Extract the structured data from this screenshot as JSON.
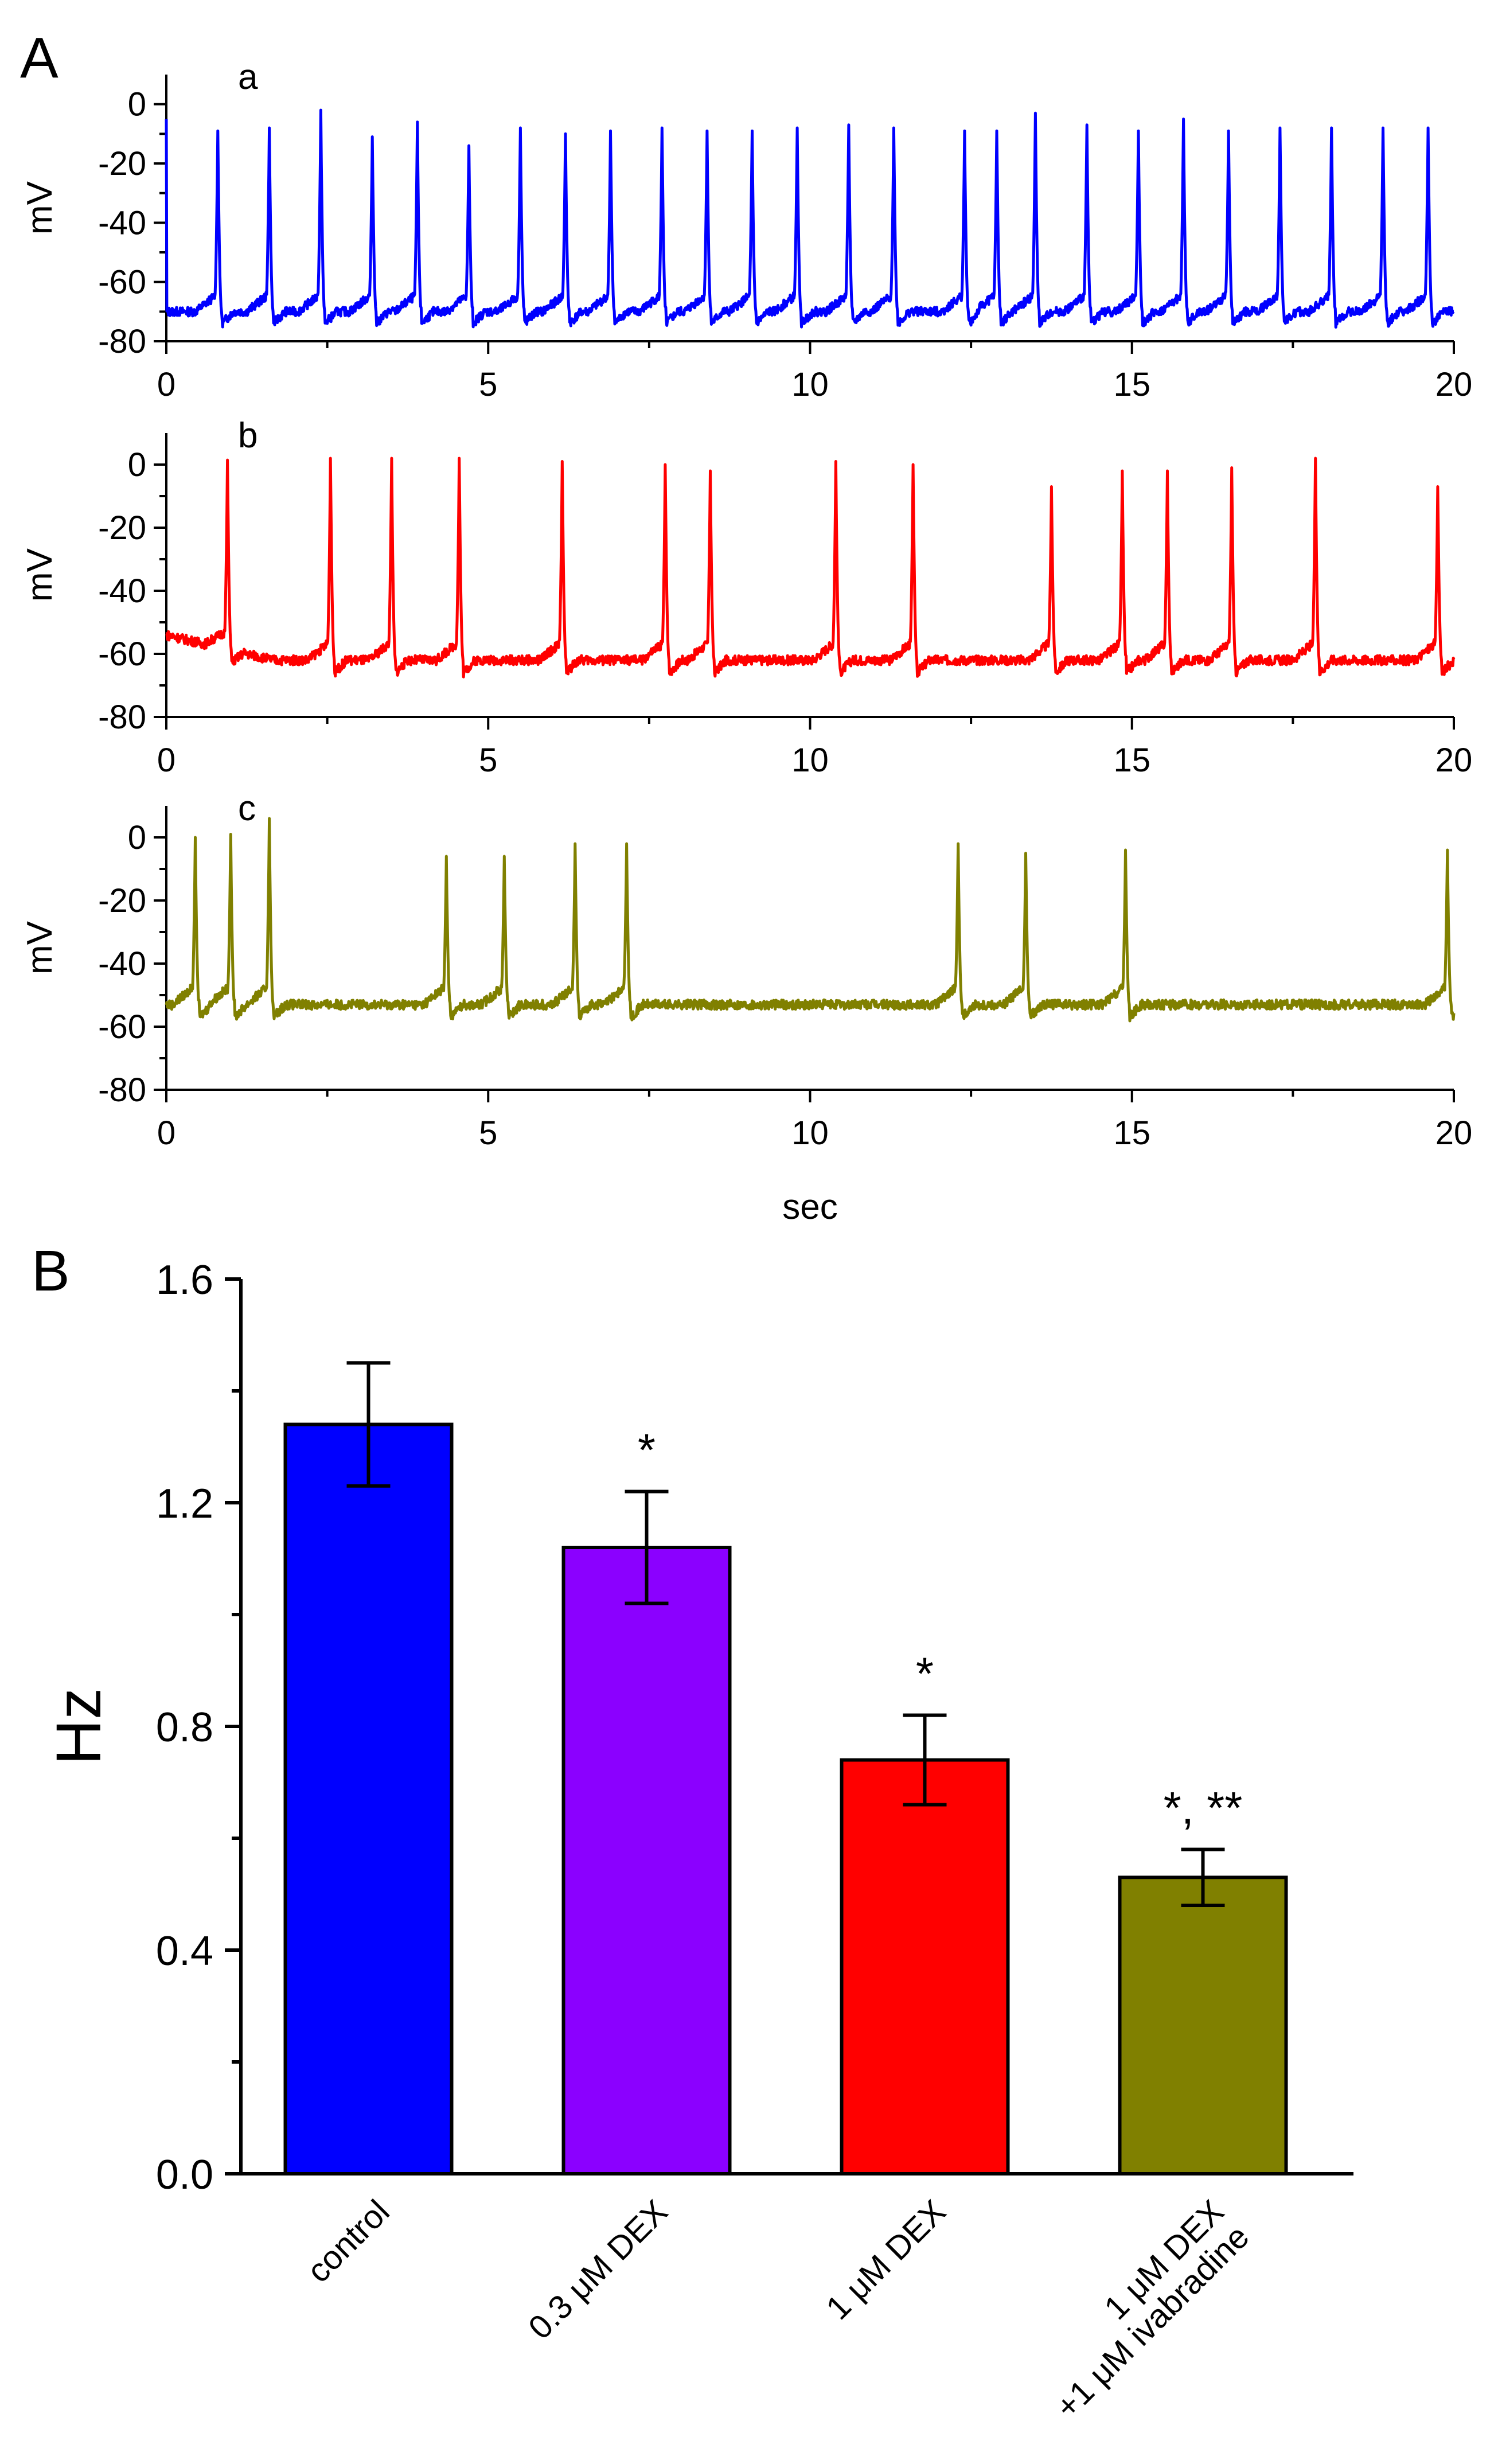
{
  "panels": {
    "A": "A",
    "B": "B"
  },
  "traces": [
    {
      "letter": "a",
      "color": "#0000ff",
      "ylabel": "mV",
      "ylim": [
        -80,
        10
      ],
      "yticks": [
        "0",
        "-20",
        "-40",
        "-60",
        "-80"
      ],
      "xticks": [
        "0",
        "5",
        "10",
        "15",
        "20"
      ],
      "baseline": -70,
      "peaks": [
        0.8,
        1.6,
        2.4,
        3.2,
        3.9,
        4.7,
        5.5,
        6.2,
        6.9,
        7.7,
        8.4,
        9.1,
        9.8,
        10.6,
        11.3,
        12.4,
        12.9,
        13.5,
        14.3,
        15.1,
        15.8,
        16.5,
        17.3,
        18.1,
        18.9,
        19.6
      ],
      "peak_values": [
        -9,
        -8,
        -2,
        -11,
        -6,
        -14,
        -8,
        -10,
        -9,
        -8,
        -9,
        -9,
        -8,
        -7,
        -8,
        -9,
        -9,
        -3,
        -7,
        -9,
        -5,
        -9,
        -8,
        -8,
        -8,
        -8
      ]
    },
    {
      "letter": "b",
      "color": "#ff0000",
      "ylabel": "mV",
      "ylim": [
        -80,
        10
      ],
      "yticks": [
        "0",
        "-20",
        "-40",
        "-60",
        "-80"
      ],
      "xticks": [
        "0",
        "5",
        "10",
        "15",
        "20"
      ],
      "baseline": -62,
      "peaks": [
        0.95,
        2.55,
        3.5,
        4.55,
        6.15,
        7.75,
        8.45,
        10.4,
        11.6,
        13.75,
        14.85,
        15.55,
        16.55,
        17.85,
        19.75
      ],
      "peak_values": [
        -2,
        2,
        2,
        2,
        1,
        0,
        -2,
        1,
        0,
        -7,
        -2,
        -2,
        -1,
        2,
        -7
      ]
    },
    {
      "letter": "c",
      "color": "#808000",
      "ylabel": "mV",
      "ylim": [
        -80,
        10
      ],
      "yticks": [
        "0",
        "-20",
        "-40",
        "-60",
        "-80"
      ],
      "xticks": [
        "0",
        "5",
        "10",
        "15",
        "20"
      ],
      "xlabel": "sec",
      "baseline": -53,
      "peaks": [
        0.45,
        1.0,
        1.6,
        4.35,
        5.25,
        6.35,
        7.15,
        12.3,
        13.35,
        14.9,
        19.9
      ],
      "peak_values": [
        0,
        1,
        6,
        -6,
        -6,
        -2,
        -2,
        -2,
        -5,
        -4,
        -4
      ]
    }
  ],
  "chart_data": {
    "type": "bar",
    "categories": [
      "control",
      "0.3 μM DEX",
      "1 μM DEX",
      "1 μM DEX +1 μM ivabradine"
    ],
    "category_lines": [
      [
        "control"
      ],
      [
        "0.3 μM DEX"
      ],
      [
        "1 μM DEX"
      ],
      [
        "1 μM DEX",
        "+1 μM ivabradine"
      ]
    ],
    "values": [
      1.34,
      1.12,
      0.74,
      0.53
    ],
    "errors": [
      0.11,
      0.1,
      0.08,
      0.05
    ],
    "colors": [
      "#0000ff",
      "#8b00ff",
      "#ff0000",
      "#808000"
    ],
    "significance": [
      "",
      "*",
      "*",
      "*, **"
    ],
    "ylabel": "Hz",
    "ylim": [
      0,
      1.6
    ],
    "yticks": [
      "0.0",
      "0.4",
      "0.8",
      "1.2",
      "1.6"
    ]
  }
}
